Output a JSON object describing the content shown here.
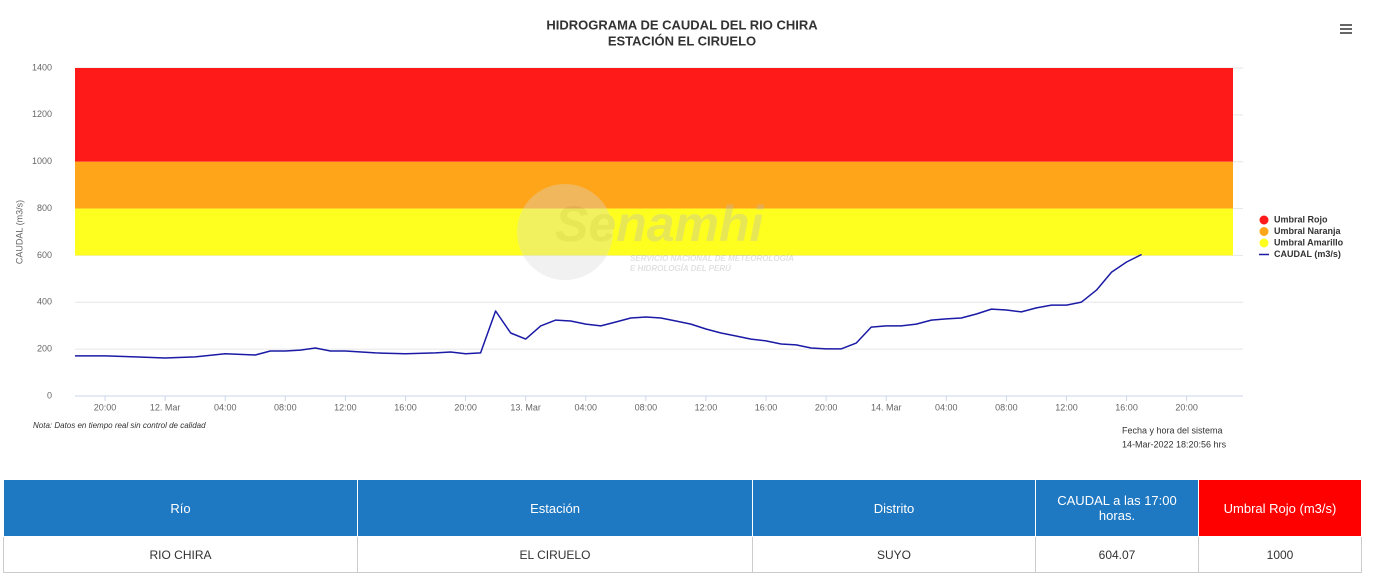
{
  "chart_data": {
    "type": "line",
    "title": "HIDROGRAMA DE CAUDAL DEL RIO CHIRA",
    "subtitle": "ESTACIÓN EL CIRUELO",
    "y_label": "CAUDAL (m3/s)",
    "note": "Nota: Datos en tiempo real sin control de calidad",
    "system_time_label": "Fecha y hora del sistema",
    "system_time": "14-Mar-2022 18:20:56 hrs",
    "watermark": {
      "name": "Senamhi",
      "line1": "SERVICIO NACIONAL DE METEOROLOGÍA",
      "line2": "E HIDROLOGÍA DEL PERÚ"
    },
    "xlim": [
      "2022-03-11 18:00",
      "2022-03-14 23:45"
    ],
    "xticks": [
      {
        "value": "2022-03-11 20:00",
        "label": "20:00"
      },
      {
        "value": "2022-03-12 00:00",
        "label": "12. Mar"
      },
      {
        "value": "2022-03-12 04:00",
        "label": "04:00"
      },
      {
        "value": "2022-03-12 08:00",
        "label": "08:00"
      },
      {
        "value": "2022-03-12 12:00",
        "label": "12:00"
      },
      {
        "value": "2022-03-12 16:00",
        "label": "16:00"
      },
      {
        "value": "2022-03-12 20:00",
        "label": "20:00"
      },
      {
        "value": "2022-03-13 00:00",
        "label": "13. Mar"
      },
      {
        "value": "2022-03-13 04:00",
        "label": "04:00"
      },
      {
        "value": "2022-03-13 08:00",
        "label": "08:00"
      },
      {
        "value": "2022-03-13 12:00",
        "label": "12:00"
      },
      {
        "value": "2022-03-13 16:00",
        "label": "16:00"
      },
      {
        "value": "2022-03-13 20:00",
        "label": "20:00"
      },
      {
        "value": "2022-03-14 00:00",
        "label": "14. Mar"
      },
      {
        "value": "2022-03-14 04:00",
        "label": "04:00"
      },
      {
        "value": "2022-03-14 08:00",
        "label": "08:00"
      },
      {
        "value": "2022-03-14 12:00",
        "label": "12:00"
      },
      {
        "value": "2022-03-14 16:00",
        "label": "16:00"
      },
      {
        "value": "2022-03-14 20:00",
        "label": "20:00"
      }
    ],
    "ylim": [
      0,
      1400
    ],
    "yticks": [
      0,
      200,
      400,
      600,
      800,
      1000,
      1200,
      1400
    ],
    "grid": true,
    "legend": "right",
    "bands": [
      {
        "name": "Umbral Rojo",
        "color": "#ff1a1a",
        "from": 1000,
        "to": 1400
      },
      {
        "name": "Umbral Naranja",
        "color": "#ffa51a",
        "from": 800,
        "to": 1000
      },
      {
        "name": "Umbral Amarillo",
        "color": "#ffff1f",
        "from": 600,
        "to": 800
      }
    ],
    "x": [
      "2022-03-11 18:00",
      "2022-03-11 20:00",
      "2022-03-11 22:00",
      "2022-03-12 00:00",
      "2022-03-12 02:00",
      "2022-03-12 04:00",
      "2022-03-12 06:00",
      "2022-03-12 07:00",
      "2022-03-12 08:00",
      "2022-03-12 09:00",
      "2022-03-12 10:00",
      "2022-03-12 11:00",
      "2022-03-12 12:00",
      "2022-03-12 14:00",
      "2022-03-12 16:00",
      "2022-03-12 18:00",
      "2022-03-12 19:00",
      "2022-03-12 20:00",
      "2022-03-12 21:00",
      "2022-03-12 22:00",
      "2022-03-12 23:00",
      "2022-03-13 00:00",
      "2022-03-13 01:00",
      "2022-03-13 02:00",
      "2022-03-13 03:00",
      "2022-03-13 04:00",
      "2022-03-13 05:00",
      "2022-03-13 06:00",
      "2022-03-13 07:00",
      "2022-03-13 08:00",
      "2022-03-13 09:00",
      "2022-03-13 10:00",
      "2022-03-13 11:00",
      "2022-03-13 12:00",
      "2022-03-13 13:00",
      "2022-03-13 14:00",
      "2022-03-13 15:00",
      "2022-03-13 16:00",
      "2022-03-13 17:00",
      "2022-03-13 18:00",
      "2022-03-13 19:00",
      "2022-03-13 20:00",
      "2022-03-13 21:00",
      "2022-03-13 22:00",
      "2022-03-13 23:00",
      "2022-03-14 00:00",
      "2022-03-14 01:00",
      "2022-03-14 02:00",
      "2022-03-14 03:00",
      "2022-03-14 04:00",
      "2022-03-14 05:00",
      "2022-03-14 06:00",
      "2022-03-14 07:00",
      "2022-03-14 08:00",
      "2022-03-14 09:00",
      "2022-03-14 10:00",
      "2022-03-14 11:00",
      "2022-03-14 12:00",
      "2022-03-14 13:00",
      "2022-03-14 14:00",
      "2022-03-14 15:00",
      "2022-03-14 16:00",
      "2022-03-14 17:00"
    ],
    "series": [
      {
        "name": "CAUDAL (m3/s)",
        "color": "#1a1aa6",
        "values": [
          171,
          171,
          167,
          162,
          167,
          180,
          175,
          192,
          192,
          196,
          205,
          192,
          192,
          184,
          180,
          184,
          188,
          180,
          184,
          363,
          269,
          243,
          299,
          324,
          320,
          307,
          299,
          316,
          333,
          337,
          333,
          320,
          307,
          286,
          269,
          256,
          243,
          235,
          222,
          218,
          205,
          201,
          201,
          226,
          294,
          299,
          299,
          307,
          324,
          329,
          333,
          350,
          371,
          367,
          359,
          376,
          388,
          388,
          401,
          452,
          529,
          572,
          604
        ]
      }
    ]
  },
  "table": {
    "headers": [
      "Río",
      "Estación",
      "Distrito",
      "CAUDAL a las 17:00 horas.",
      "Umbral Rojo (m3/s)"
    ],
    "rows": [
      [
        "RIO CHIRA",
        "EL CIRUELO",
        "SUYO",
        604.07,
        1000
      ]
    ]
  }
}
